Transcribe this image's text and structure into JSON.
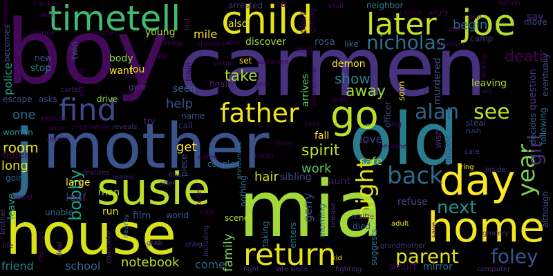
{
  "background": "#000000",
  "words": [
    {
      "text": "boy",
      "color": "#45095a"
    },
    {
      "text": "carmen",
      "color": "#46327f"
    },
    {
      "text": "mother",
      "color": "#3a538b"
    },
    {
      "text": "old",
      "color": "#2a7d8e"
    },
    {
      "text": "mia",
      "color": "#a2d839"
    },
    {
      "text": "house",
      "color": "#d7e219"
    },
    {
      "text": "susie",
      "color": "#bade28"
    },
    {
      "text": "j",
      "color": "#31688e"
    },
    {
      "text": "child",
      "color": "#e5e419"
    },
    {
      "text": "timetell",
      "color": "#3fbc73"
    },
    {
      "text": "joe",
      "color": "#b5de2b"
    },
    {
      "text": "later",
      "color": "#c6e021"
    },
    {
      "text": "home",
      "color": "#f4e61e"
    },
    {
      "text": "day",
      "color": "#fde725"
    },
    {
      "text": "go",
      "color": "#bddf26"
    },
    {
      "text": "return",
      "color": "#e4e419"
    },
    {
      "text": "find",
      "color": "#3e4989"
    },
    {
      "text": "father",
      "color": "#efe51c"
    },
    {
      "text": "nicholas",
      "color": "#2c718e"
    },
    {
      "text": "alan",
      "color": "#33638d"
    },
    {
      "text": "see",
      "color": "#c2df23"
    },
    {
      "text": "year",
      "color": "#7cd250"
    },
    {
      "text": "girl",
      "color": "#46337e"
    },
    {
      "text": "back",
      "color": "#31688e"
    },
    {
      "text": "night",
      "color": "#dde318"
    },
    {
      "text": "parent",
      "color": "#dde318"
    },
    {
      "text": "foley",
      "color": "#3b528b"
    },
    {
      "text": "next",
      "color": "#20928c"
    },
    {
      "text": "death",
      "color": "#440154"
    },
    {
      "text": "begin",
      "color": "#31688e"
    },
    {
      "text": "bobby",
      "color": "#20a386"
    },
    {
      "text": "spirit",
      "color": "#c8e020"
    },
    {
      "text": "show",
      "color": "#26828e"
    },
    {
      "text": "away",
      "color": "#9dd93b"
    },
    {
      "text": "take",
      "color": "#addc30"
    },
    {
      "text": "help",
      "color": "#3b528b"
    },
    {
      "text": "room",
      "color": "#e7e419"
    },
    {
      "text": "long",
      "color": "#e5e419"
    },
    {
      "text": "hotel",
      "color": "#440154"
    },
    {
      "text": "one",
      "color": "#31688e"
    },
    {
      "text": "police",
      "color": "#1f9e89"
    },
    {
      "text": "work",
      "color": "#5ec962"
    },
    {
      "text": "hair",
      "color": "#d2e21b"
    },
    {
      "text": "sibling",
      "color": "#3e4989"
    },
    {
      "text": "love",
      "color": "#414487"
    },
    {
      "text": "safe",
      "color": "#a0da39"
    },
    {
      "text": "get",
      "color": "#fde725"
    },
    {
      "text": "friend",
      "color": "#27808e"
    },
    {
      "text": "school",
      "color": "#31688e"
    },
    {
      "text": "notebook",
      "color": "#bddf26"
    },
    {
      "text": "come",
      "color": "#33638d"
    },
    {
      "text": "family",
      "color": "#7ad151"
    },
    {
      "text": "gerry",
      "color": "#3b528b"
    },
    {
      "text": "aunt",
      "color": "#481a6c"
    },
    {
      "text": "refuse",
      "color": "#3e4989"
    },
    {
      "text": "smurf",
      "color": "#440154"
    },
    {
      "text": "mirror",
      "color": "#2c728e"
    },
    {
      "text": "fall",
      "color": "#fde725"
    },
    {
      "text": "demon",
      "color": "#fde725"
    },
    {
      "text": "leaving",
      "color": "#addc30"
    },
    {
      "text": "question",
      "color": "#46337e"
    },
    {
      "text": "murdered",
      "color": "#3b528b"
    },
    {
      "text": "seen",
      "color": "#33638d"
    },
    {
      "text": "lou",
      "color": "#e7e419"
    },
    {
      "text": "want",
      "color": "#fde725"
    },
    {
      "text": "body",
      "color": "#90d743"
    },
    {
      "text": "stop",
      "color": "#26828e"
    },
    {
      "text": "new",
      "color": "#3b528b"
    },
    {
      "text": "young",
      "color": "#addc30"
    },
    {
      "text": "mile",
      "color": "#fde725"
    },
    {
      "text": "discover",
      "color": "#a2d839"
    },
    {
      "text": "rosa",
      "color": "#3b528b"
    },
    {
      "text": "also",
      "color": "#e7e419"
    },
    {
      "text": "like",
      "color": "#33638d"
    },
    {
      "text": "arrested",
      "color": "#46337e"
    },
    {
      "text": "neighbor",
      "color": "#2a7b8e"
    },
    {
      "text": "say",
      "color": "#46337e"
    },
    {
      "text": "move",
      "color": "#3f4788"
    },
    {
      "text": "camp",
      "color": "#46337e"
    },
    {
      "text": "fighting",
      "color": "#46337e"
    },
    {
      "text": "drive",
      "color": "#8bd646"
    },
    {
      "text": "give",
      "color": "#46337e"
    },
    {
      "text": "try",
      "color": "#482173"
    },
    {
      "text": "name",
      "color": "#3b528b"
    },
    {
      "text": "call",
      "color": "#46337e"
    },
    {
      "text": "piece",
      "color": "#3e4989"
    },
    {
      "text": "couple",
      "color": "#2c718e"
    },
    {
      "text": "announces",
      "color": "#2a788e"
    },
    {
      "text": "nothing",
      "color": "#31688e"
    },
    {
      "text": "film",
      "color": "#3e4989"
    },
    {
      "text": "world",
      "color": "#3b528b"
    },
    {
      "text": "scene",
      "color": "#b2dd2d"
    },
    {
      "text": "run",
      "color": "#e3e418"
    },
    {
      "text": "man",
      "color": "#a2d839"
    },
    {
      "text": "large",
      "color": "#fde725"
    },
    {
      "text": "leaf",
      "color": "#46337e"
    },
    {
      "text": "unable",
      "color": "#2c728e"
    },
    {
      "text": "leave",
      "color": "#20a386"
    },
    {
      "text": "woman",
      "color": "#20928c"
    },
    {
      "text": "escape",
      "color": "#3b528b"
    },
    {
      "text": "asks",
      "color": "#3e4989"
    },
    {
      "text": "arrives",
      "color": "#5ec962"
    },
    {
      "text": "officer",
      "color": "#3f4788"
    },
    {
      "text": "soon",
      "color": "#e5e419"
    },
    {
      "text": "wish",
      "color": "#472a7a"
    },
    {
      "text": "outside",
      "color": "#3e4989"
    },
    {
      "text": "decides",
      "color": "#3b528b"
    },
    {
      "text": "following",
      "color": "#2c728e"
    },
    {
      "text": "eventually",
      "color": "#3b528b"
    },
    {
      "text": "although",
      "color": "#3b528b"
    },
    {
      "text": "steal",
      "color": "#3e4989"
    },
    {
      "text": "rush",
      "color": "#3e4989"
    },
    {
      "text": "ring",
      "color": "#fde725"
    },
    {
      "text": "inside",
      "color": "#46337e"
    },
    {
      "text": "care",
      "color": "#46337e"
    },
    {
      "text": "grocery",
      "color": "#46337e"
    },
    {
      "text": "computer",
      "color": "#472a7a"
    },
    {
      "text": "adult",
      "color": "#fde725"
    },
    {
      "text": "grandmother",
      "color": "#46337e"
    },
    {
      "text": "kid",
      "color": "#fde725"
    },
    {
      "text": "died",
      "color": "#3b528b"
    },
    {
      "text": "enters",
      "color": "#2c728e"
    },
    {
      "text": "taking",
      "color": "#31688e"
    },
    {
      "text": "morning",
      "color": "#2c728e"
    },
    {
      "text": "suggests",
      "color": "#2c728e"
    },
    {
      "text": "realize",
      "color": "#46337e"
    },
    {
      "text": "release",
      "color": "#472a7a"
    },
    {
      "text": "grab",
      "color": "#46337e"
    },
    {
      "text": "craig",
      "color": "#46337e"
    },
    {
      "text": "ruth",
      "color": "#440154"
    },
    {
      "text": "including",
      "color": "#46337e"
    },
    {
      "text": "late",
      "color": "#46337e"
    },
    {
      "text": "since",
      "color": "#46337e"
    },
    {
      "text": "fight",
      "color": "#46337e"
    },
    {
      "text": "final",
      "color": "#482173"
    },
    {
      "text": "offer",
      "color": "#46337e"
    },
    {
      "text": "telling",
      "color": "#440154"
    },
    {
      "text": "realizes",
      "color": "#482173"
    },
    {
      "text": "learns",
      "color": "#482173"
    },
    {
      "text": "nearby",
      "color": "#31688e"
    },
    {
      "text": "counselor",
      "color": "#472a7a"
    },
    {
      "text": "deal",
      "color": "#472a7a"
    },
    {
      "text": "message",
      "color": "#440154"
    },
    {
      "text": "life",
      "color": "#481a6c"
    },
    {
      "text": "brother",
      "color": "#46337e"
    },
    {
      "text": "board",
      "color": "#440154"
    },
    {
      "text": "going",
      "color": "#31688e"
    },
    {
      "text": "sister",
      "color": "#440154"
    },
    {
      "text": "shoe",
      "color": "#440154"
    },
    {
      "text": "heaven",
      "color": "#440154"
    },
    {
      "text": "meanwhile",
      "color": "#440154"
    },
    {
      "text": "reveals",
      "color": "#46337e"
    },
    {
      "text": "cartel",
      "color": "#482173"
    },
    {
      "text": "paper",
      "color": "#440154"
    },
    {
      "text": "victim",
      "color": "#440154"
    },
    {
      "text": "finally",
      "color": "#481a6c"
    },
    {
      "text": "plot",
      "color": "#440154"
    },
    {
      "text": "brain",
      "color": "#440154"
    },
    {
      "text": "paranormal",
      "color": "#440154"
    },
    {
      "text": "someone",
      "color": "#440154"
    },
    {
      "text": "set",
      "color": "#fde725"
    },
    {
      "text": "train",
      "color": "#440154"
    },
    {
      "text": "sharon",
      "color": "#440154"
    },
    {
      "text": "catch",
      "color": "#440154"
    },
    {
      "text": "third",
      "color": "#440154"
    },
    {
      "text": "getting",
      "color": "#440154"
    },
    {
      "text": "place",
      "color": "#440154"
    },
    {
      "text": "visit",
      "color": "#440154"
    },
    {
      "text": "ca",
      "color": "#440154"
    },
    {
      "text": "last",
      "color": "#481a6c"
    },
    {
      "text": "along",
      "color": "#440154"
    },
    {
      "text": "ask",
      "color": "#440154"
    },
    {
      "text": "another",
      "color": "#440154"
    },
    {
      "text": "arrive",
      "color": "#440154"
    },
    {
      "text": "well",
      "color": "#440154"
    },
    {
      "text": "frankie",
      "color": "#440154"
    },
    {
      "text": "present",
      "color": "#440154"
    },
    {
      "text": "becomes",
      "color": "#3b528b"
    },
    {
      "text": "twin",
      "color": "#3b528b"
    },
    {
      "text": "explains",
      "color": "#440154"
    },
    {
      "text": "course",
      "color": "#440154"
    },
    {
      "text": "angry",
      "color": "#440154"
    },
    {
      "text": "deliver",
      "color": "#440154"
    },
    {
      "text": "pull",
      "color": "#440154"
    },
    {
      "text": "upon",
      "color": "#440154"
    },
    {
      "text": "however",
      "color": "#440154"
    },
    {
      "text": "looking",
      "color": "#440154"
    },
    {
      "text": "sid",
      "color": "#440154"
    },
    {
      "text": "herd",
      "color": "#440154"
    },
    {
      "text": "meet",
      "color": "#440154"
    },
    {
      "text": "taken",
      "color": "#440154"
    },
    {
      "text": "entire",
      "color": "#440154"
    },
    {
      "text": "leg",
      "color": "#440154"
    },
    {
      "text": "become",
      "color": "#440154"
    },
    {
      "text": "save",
      "color": "#440154"
    }
  ]
}
